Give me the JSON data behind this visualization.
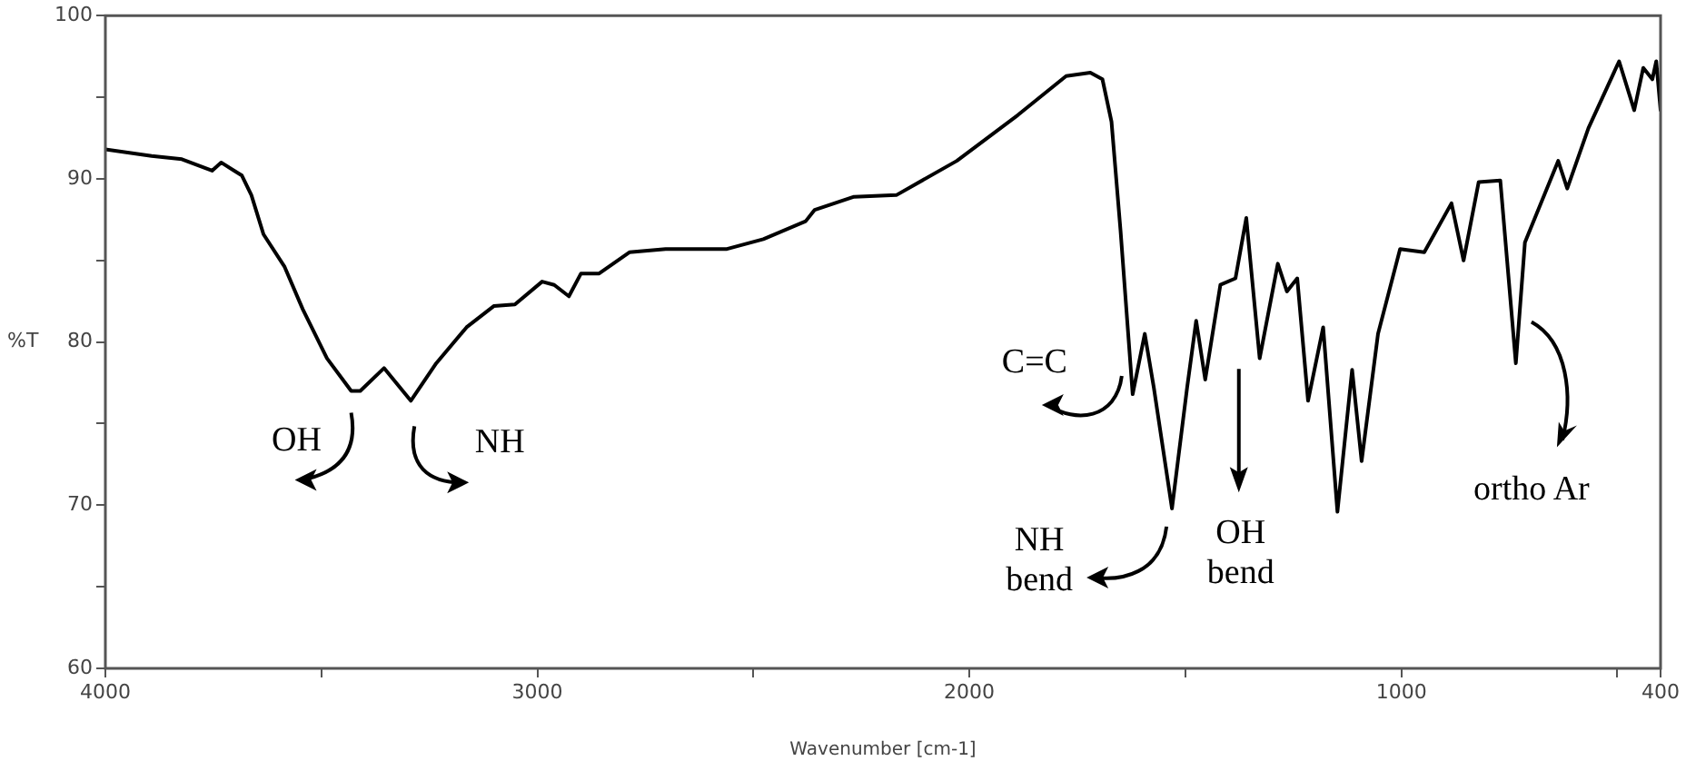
{
  "chart_data": {
    "type": "line",
    "xlabel": "Wavenumber [cm-1]",
    "ylabel": "%T",
    "xlim": [
      4000,
      400
    ],
    "ylim": [
      60,
      100
    ],
    "xticks": [
      4000,
      {
        "value": 3500,
        "label": null
      },
      3000,
      {
        "value": 2500,
        "label": null
      },
      2000,
      {
        "value": 1500,
        "label": null
      },
      1000,
      {
        "value": 500,
        "label": null
      },
      400
    ],
    "yticks": [
      60,
      {
        "value": 65,
        "label": null
      },
      70,
      {
        "value": 75,
        "label": null
      },
      80,
      {
        "value": 85,
        "label": null
      },
      90,
      {
        "value": 95,
        "label": null
      },
      100
    ],
    "grid": false,
    "legend": false,
    "marker": "none",
    "line_style": "solid",
    "series": [
      {
        "color": "#000000",
        "x": [
          4000,
          3893,
          3823,
          3753,
          3732,
          3684,
          3662,
          3634,
          3585,
          3543,
          3487,
          3431,
          3410,
          3355,
          3293,
          3234,
          3164,
          3101,
          3052,
          2989,
          2961,
          2927,
          2899,
          2857,
          2787,
          2703,
          2561,
          2477,
          2379,
          2358,
          2267,
          2169,
          2029,
          1888,
          1776,
          1720,
          1692,
          1671,
          1650,
          1622,
          1594,
          1573,
          1531,
          1496,
          1475,
          1454,
          1419,
          1384,
          1359,
          1328,
          1286,
          1265,
          1241,
          1216,
          1181,
          1148,
          1114,
          1092,
          1054,
          1003,
          947,
          884,
          856,
          821,
          771,
          735,
          714,
          637,
          616,
          567,
          496,
          461,
          440,
          419,
          410,
          400
        ],
        "values": [
          91.8,
          91.4,
          91.2,
          90.5,
          91.0,
          90.2,
          89.0,
          86.6,
          84.6,
          82.0,
          79.0,
          77.0,
          77.0,
          78.4,
          76.4,
          78.7,
          80.9,
          82.2,
          82.3,
          83.7,
          83.5,
          82.8,
          84.2,
          84.2,
          85.5,
          85.7,
          85.7,
          86.3,
          87.4,
          88.1,
          88.9,
          89.0,
          91.1,
          93.9,
          96.3,
          96.5,
          96.1,
          93.5,
          86.8,
          76.8,
          80.5,
          77.2,
          69.8,
          77.2,
          81.3,
          77.7,
          83.5,
          83.9,
          87.6,
          79.0,
          84.8,
          83.1,
          83.9,
          76.4,
          80.9,
          69.6,
          78.3,
          72.7,
          80.5,
          85.7,
          85.5,
          88.5,
          85.0,
          89.8,
          89.9,
          78.7,
          86.1,
          91.1,
          89.4,
          93.1,
          97.2,
          94.2,
          96.8,
          96.1,
          97.2,
          94.2
        ]
      }
    ],
    "annotations": [
      {
        "text": "OH",
        "x": 3410,
        "y": 77.0
      },
      {
        "text": "NH",
        "x": 3293,
        "y": 76.4
      },
      {
        "text": "C=C",
        "x": 1622,
        "y": 76.8
      },
      {
        "text": "NH bend",
        "x": 1531,
        "y": 69.8
      },
      "OH bend",
      "ortho Ar"
    ]
  }
}
